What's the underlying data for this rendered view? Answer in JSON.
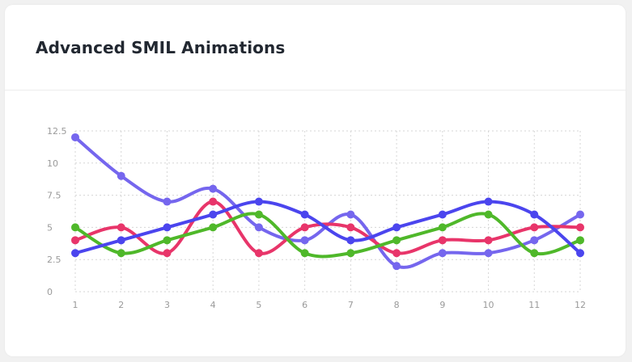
{
  "card": {
    "title": "Advanced SMIL Animations"
  },
  "colors": {
    "background": "#f1f1f1",
    "card": "#ffffff",
    "grid": "#d6d6d6"
  },
  "chart_data": {
    "type": "line",
    "title": "Advanced SMIL Animations",
    "x": [
      1,
      2,
      3,
      4,
      5,
      6,
      7,
      8,
      9,
      10,
      11,
      12
    ],
    "x_tick_labels": [
      "1",
      "2",
      "3",
      "4",
      "5",
      "6",
      "7",
      "8",
      "9",
      "10",
      "11",
      "12"
    ],
    "y_tick_labels": [
      "0",
      "2.5",
      "5",
      "7.5",
      "10",
      "12.5"
    ],
    "y_ticks": [
      0,
      2.5,
      5,
      7.5,
      10,
      12.5
    ],
    "ylim": [
      0,
      12.5
    ],
    "xlabel": "",
    "ylabel": "",
    "grid": true,
    "legend": "none",
    "curve": "smooth",
    "series": [
      {
        "color": "#7566ee",
        "values": [
          12,
          9,
          7,
          8,
          5,
          4,
          6,
          2,
          3,
          3,
          4,
          6
        ]
      },
      {
        "color": "#e8356a",
        "values": [
          4,
          5,
          3,
          7,
          3,
          5,
          5,
          3,
          4,
          4,
          5,
          5
        ]
      },
      {
        "color": "#4fb82a",
        "values": [
          5,
          3,
          4,
          5,
          6,
          3,
          3,
          4,
          5,
          6,
          3,
          4
        ]
      },
      {
        "color": "#4b45ee",
        "values": [
          3,
          4,
          5,
          6,
          7,
          6,
          4,
          5,
          6,
          7,
          6,
          3
        ]
      }
    ]
  }
}
